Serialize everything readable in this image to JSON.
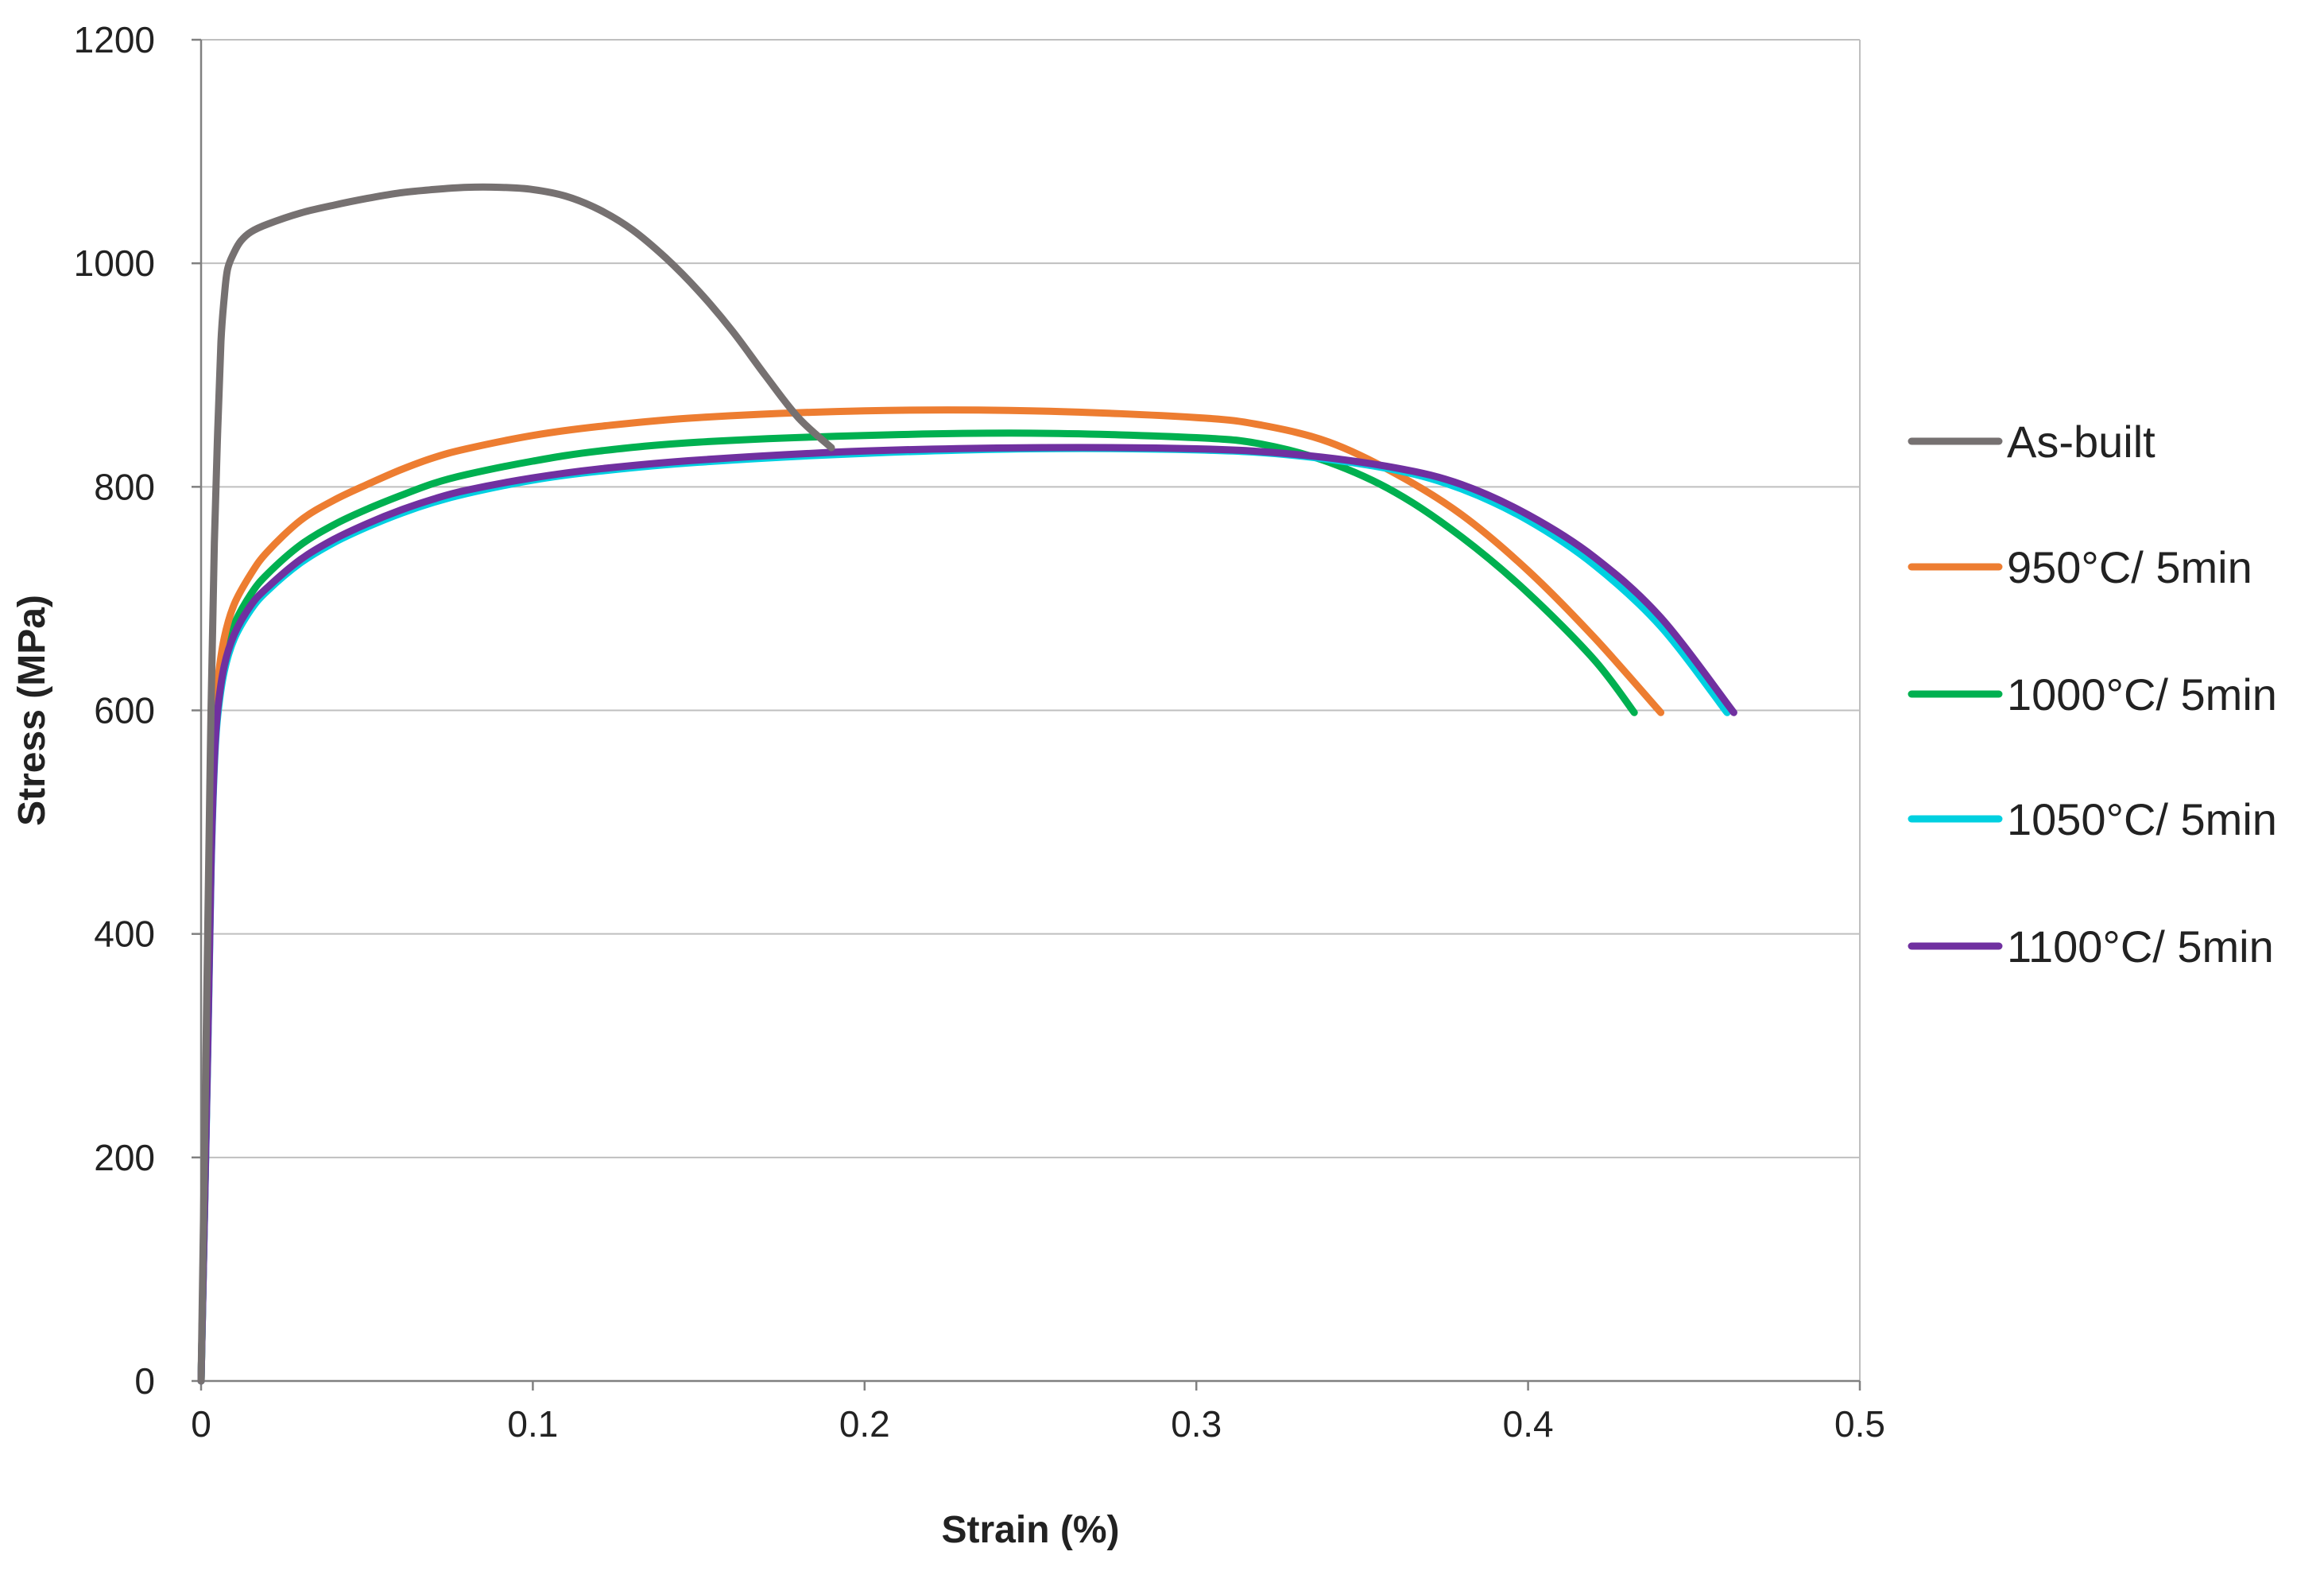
{
  "chart_data": {
    "type": "line",
    "title": "",
    "xlabel": "Strain (%)",
    "ylabel": "Stress (MPa)",
    "xlim": [
      0,
      0.5
    ],
    "ylim": [
      0,
      1200
    ],
    "x_ticks": [
      0,
      0.1,
      0.2,
      0.3,
      0.4,
      0.5
    ],
    "y_ticks": [
      0,
      200,
      400,
      600,
      800,
      1000,
      1200
    ],
    "x_tick_labels": [
      "0",
      "0.1",
      "0.2",
      "0.3",
      "0.4",
      "0.5"
    ],
    "y_tick_labels": [
      "0",
      "200",
      "400",
      "600",
      "800",
      "1000",
      "1200"
    ],
    "grid": "horizontal",
    "legend_position": "right",
    "series": [
      {
        "name": "As-built",
        "color": "#767171",
        "points": [
          [
            0,
            0
          ],
          [
            0.002,
            400
          ],
          [
            0.003,
            600
          ],
          [
            0.004,
            750
          ],
          [
            0.005,
            850
          ],
          [
            0.006,
            930
          ],
          [
            0.007,
            970
          ],
          [
            0.008,
            995
          ],
          [
            0.01,
            1010
          ],
          [
            0.012,
            1020
          ],
          [
            0.015,
            1028
          ],
          [
            0.02,
            1035
          ],
          [
            0.03,
            1045
          ],
          [
            0.04,
            1052
          ],
          [
            0.05,
            1058
          ],
          [
            0.06,
            1063
          ],
          [
            0.07,
            1066
          ],
          [
            0.08,
            1068
          ],
          [
            0.09,
            1068
          ],
          [
            0.1,
            1066
          ],
          [
            0.11,
            1060
          ],
          [
            0.12,
            1048
          ],
          [
            0.13,
            1030
          ],
          [
            0.14,
            1005
          ],
          [
            0.15,
            975
          ],
          [
            0.16,
            940
          ],
          [
            0.17,
            900
          ],
          [
            0.18,
            862
          ],
          [
            0.19,
            835
          ]
        ]
      },
      {
        "name": "950°C/ 5min",
        "color": "#ED7D31",
        "points": [
          [
            0,
            0
          ],
          [
            0.002,
            300
          ],
          [
            0.003,
            480
          ],
          [
            0.004,
            580
          ],
          [
            0.005,
            625
          ],
          [
            0.007,
            665
          ],
          [
            0.01,
            695
          ],
          [
            0.015,
            722
          ],
          [
            0.02,
            742
          ],
          [
            0.03,
            770
          ],
          [
            0.04,
            788
          ],
          [
            0.05,
            802
          ],
          [
            0.06,
            815
          ],
          [
            0.07,
            826
          ],
          [
            0.08,
            834
          ],
          [
            0.1,
            846
          ],
          [
            0.12,
            854
          ],
          [
            0.15,
            862
          ],
          [
            0.2,
            868
          ],
          [
            0.25,
            868
          ],
          [
            0.3,
            862
          ],
          [
            0.32,
            855
          ],
          [
            0.34,
            840
          ],
          [
            0.36,
            812
          ],
          [
            0.38,
            775
          ],
          [
            0.4,
            725
          ],
          [
            0.42,
            665
          ],
          [
            0.44,
            598
          ]
        ]
      },
      {
        "name": "1000°C/ 5min",
        "color": "#00B050",
        "points": [
          [
            0,
            0
          ],
          [
            0.002,
            300
          ],
          [
            0.003,
            470
          ],
          [
            0.004,
            565
          ],
          [
            0.005,
            610
          ],
          [
            0.007,
            648
          ],
          [
            0.01,
            677
          ],
          [
            0.015,
            704
          ],
          [
            0.02,
            722
          ],
          [
            0.03,
            748
          ],
          [
            0.04,
            766
          ],
          [
            0.05,
            780
          ],
          [
            0.06,
            792
          ],
          [
            0.07,
            803
          ],
          [
            0.08,
            811
          ],
          [
            0.1,
            823
          ],
          [
            0.12,
            832
          ],
          [
            0.15,
            840
          ],
          [
            0.2,
            846
          ],
          [
            0.25,
            848
          ],
          [
            0.3,
            844
          ],
          [
            0.32,
            838
          ],
          [
            0.34,
            822
          ],
          [
            0.36,
            795
          ],
          [
            0.38,
            755
          ],
          [
            0.4,
            705
          ],
          [
            0.42,
            645
          ],
          [
            0.432,
            598
          ]
        ]
      },
      {
        "name": "1050°C/ 5min",
        "color": "#00D0E0",
        "points": [
          [
            0,
            0
          ],
          [
            0.002,
            290
          ],
          [
            0.003,
            455
          ],
          [
            0.004,
            550
          ],
          [
            0.005,
            595
          ],
          [
            0.007,
            635
          ],
          [
            0.01,
            664
          ],
          [
            0.015,
            690
          ],
          [
            0.02,
            707
          ],
          [
            0.03,
            732
          ],
          [
            0.04,
            750
          ],
          [
            0.05,
            764
          ],
          [
            0.06,
            776
          ],
          [
            0.07,
            786
          ],
          [
            0.08,
            794
          ],
          [
            0.1,
            806
          ],
          [
            0.12,
            814
          ],
          [
            0.15,
            822
          ],
          [
            0.2,
            830
          ],
          [
            0.25,
            834
          ],
          [
            0.3,
            833
          ],
          [
            0.33,
            828
          ],
          [
            0.36,
            815
          ],
          [
            0.38,
            798
          ],
          [
            0.4,
            770
          ],
          [
            0.42,
            730
          ],
          [
            0.44,
            675
          ],
          [
            0.46,
            598
          ]
        ]
      },
      {
        "name": "1100°C/ 5min",
        "color": "#7030A0",
        "points": [
          [
            0,
            0
          ],
          [
            0.002,
            295
          ],
          [
            0.003,
            460
          ],
          [
            0.004,
            555
          ],
          [
            0.005,
            600
          ],
          [
            0.007,
            640
          ],
          [
            0.01,
            668
          ],
          [
            0.015,
            694
          ],
          [
            0.02,
            710
          ],
          [
            0.03,
            735
          ],
          [
            0.04,
            753
          ],
          [
            0.05,
            767
          ],
          [
            0.06,
            779
          ],
          [
            0.07,
            789
          ],
          [
            0.08,
            797
          ],
          [
            0.1,
            808
          ],
          [
            0.12,
            816
          ],
          [
            0.15,
            824
          ],
          [
            0.2,
            832
          ],
          [
            0.25,
            835
          ],
          [
            0.3,
            834
          ],
          [
            0.33,
            829
          ],
          [
            0.36,
            817
          ],
          [
            0.38,
            802
          ],
          [
            0.4,
            775
          ],
          [
            0.42,
            737
          ],
          [
            0.44,
            683
          ],
          [
            0.462,
            598
          ]
        ]
      }
    ]
  }
}
